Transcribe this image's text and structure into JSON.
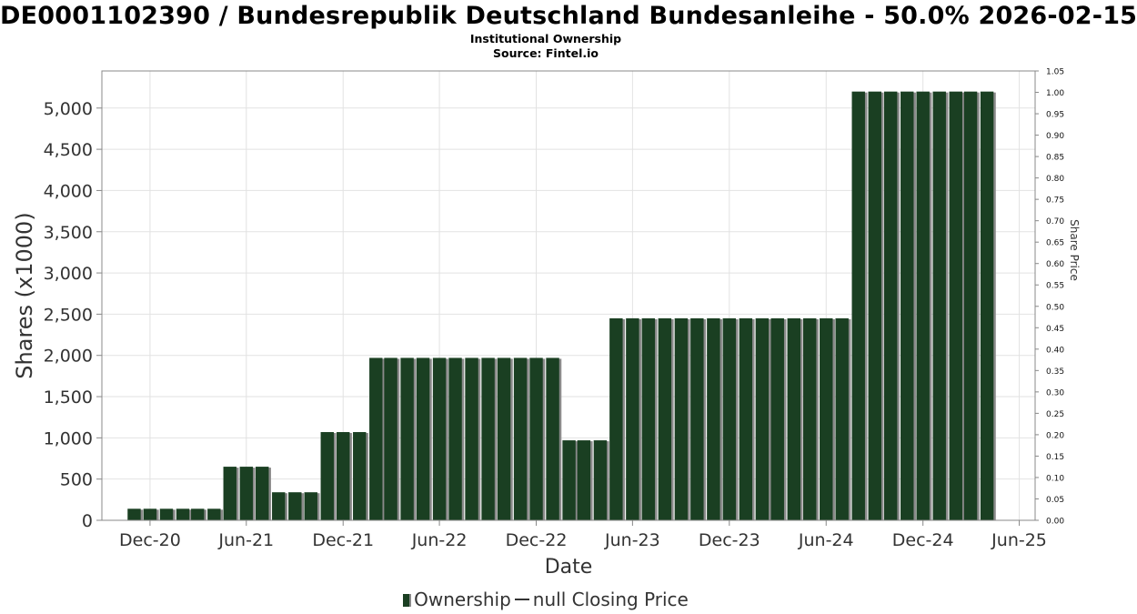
{
  "header": {
    "title": "DE0001102390 / Bundesrepublik Deutschland Bundesanleihe - 50.0% 2026-02-15",
    "subtitle": "Institutional Ownership",
    "source": "Source: Fintel.io"
  },
  "legend": {
    "ownership_label": "Ownership",
    "price_label": "null Closing Price"
  },
  "colors": {
    "bar": "#1a3f22",
    "bar_shadow": "#8a8a8a",
    "grid": "#e2e2e2"
  },
  "chart_data": {
    "type": "bar",
    "xlabel": "Date",
    "ylabel": "Shares (x1000)",
    "y2label": "Share Price",
    "ylim": [
      0,
      5450
    ],
    "y2lim": [
      0,
      1.05
    ],
    "grid": true,
    "legend_position": "bottom",
    "y_ticks": [
      "0",
      "500",
      "1,000",
      "1,500",
      "2,000",
      "2,500",
      "3,000",
      "3,500",
      "4,000",
      "4,500",
      "5,000"
    ],
    "y_tick_values": [
      0,
      500,
      1000,
      1500,
      2000,
      2500,
      3000,
      3500,
      4000,
      4500,
      5000
    ],
    "y2_ticks": [
      "0.00",
      "0.05",
      "0.10",
      "0.15",
      "0.20",
      "0.25",
      "0.30",
      "0.35",
      "0.40",
      "0.45",
      "0.50",
      "0.55",
      "0.60",
      "0.65",
      "0.70",
      "0.75",
      "0.80",
      "0.85",
      "0.90",
      "0.95",
      "1.00",
      "1.05"
    ],
    "x_ticks": [
      {
        "label": "Dec-20",
        "date": "2020-12-01"
      },
      {
        "label": "Jun-21",
        "date": "2021-06-01"
      },
      {
        "label": "Dec-21",
        "date": "2021-12-01"
      },
      {
        "label": "Jun-22",
        "date": "2022-06-01"
      },
      {
        "label": "Dec-22",
        "date": "2022-12-01"
      },
      {
        "label": "Jun-23",
        "date": "2023-06-01"
      },
      {
        "label": "Dec-23",
        "date": "2023-12-01"
      },
      {
        "label": "Jun-24",
        "date": "2024-06-01"
      },
      {
        "label": "Dec-24",
        "date": "2024-12-01"
      },
      {
        "label": "Jun-25",
        "date": "2025-06-01"
      }
    ],
    "x_range": [
      "2020-09-01",
      "2025-07-01"
    ],
    "series": [
      {
        "name": "Ownership",
        "points": [
          {
            "x": "2020-11-01",
            "y": 140
          },
          {
            "x": "2020-12-01",
            "y": 140
          },
          {
            "x": "2021-01-01",
            "y": 140
          },
          {
            "x": "2021-02-01",
            "y": 140
          },
          {
            "x": "2021-03-01",
            "y": 140
          },
          {
            "x": "2021-04-01",
            "y": 140
          },
          {
            "x": "2021-05-01",
            "y": 650
          },
          {
            "x": "2021-06-01",
            "y": 650
          },
          {
            "x": "2021-07-01",
            "y": 650
          },
          {
            "x": "2021-08-01",
            "y": 340
          },
          {
            "x": "2021-09-01",
            "y": 340
          },
          {
            "x": "2021-10-01",
            "y": 340
          },
          {
            "x": "2021-11-01",
            "y": 1070
          },
          {
            "x": "2021-12-01",
            "y": 1070
          },
          {
            "x": "2022-01-01",
            "y": 1070
          },
          {
            "x": "2022-02-01",
            "y": 1970
          },
          {
            "x": "2022-03-01",
            "y": 1970
          },
          {
            "x": "2022-04-01",
            "y": 1970
          },
          {
            "x": "2022-05-01",
            "y": 1970
          },
          {
            "x": "2022-06-01",
            "y": 1970
          },
          {
            "x": "2022-07-01",
            "y": 1970
          },
          {
            "x": "2022-08-01",
            "y": 1970
          },
          {
            "x": "2022-09-01",
            "y": 1970
          },
          {
            "x": "2022-10-01",
            "y": 1970
          },
          {
            "x": "2022-11-01",
            "y": 1970
          },
          {
            "x": "2022-12-01",
            "y": 1970
          },
          {
            "x": "2023-01-01",
            "y": 1970
          },
          {
            "x": "2023-02-01",
            "y": 970
          },
          {
            "x": "2023-03-01",
            "y": 970
          },
          {
            "x": "2023-04-01",
            "y": 970
          },
          {
            "x": "2023-05-01",
            "y": 2450
          },
          {
            "x": "2023-06-01",
            "y": 2450
          },
          {
            "x": "2023-07-01",
            "y": 2450
          },
          {
            "x": "2023-08-01",
            "y": 2450
          },
          {
            "x": "2023-09-01",
            "y": 2450
          },
          {
            "x": "2023-10-01",
            "y": 2450
          },
          {
            "x": "2023-11-01",
            "y": 2450
          },
          {
            "x": "2023-12-01",
            "y": 2450
          },
          {
            "x": "2024-01-01",
            "y": 2450
          },
          {
            "x": "2024-02-01",
            "y": 2450
          },
          {
            "x": "2024-03-01",
            "y": 2450
          },
          {
            "x": "2024-04-01",
            "y": 2450
          },
          {
            "x": "2024-05-01",
            "y": 2450
          },
          {
            "x": "2024-06-01",
            "y": 2450
          },
          {
            "x": "2024-07-01",
            "y": 2450
          },
          {
            "x": "2024-08-01",
            "y": 5200
          },
          {
            "x": "2024-09-01",
            "y": 5200
          },
          {
            "x": "2024-10-01",
            "y": 5200
          },
          {
            "x": "2024-11-01",
            "y": 5200
          },
          {
            "x": "2024-12-01",
            "y": 5200
          },
          {
            "x": "2025-01-01",
            "y": 5200
          },
          {
            "x": "2025-02-01",
            "y": 5200
          },
          {
            "x": "2025-03-01",
            "y": 5200
          },
          {
            "x": "2025-04-01",
            "y": 5200
          }
        ]
      }
    ]
  }
}
